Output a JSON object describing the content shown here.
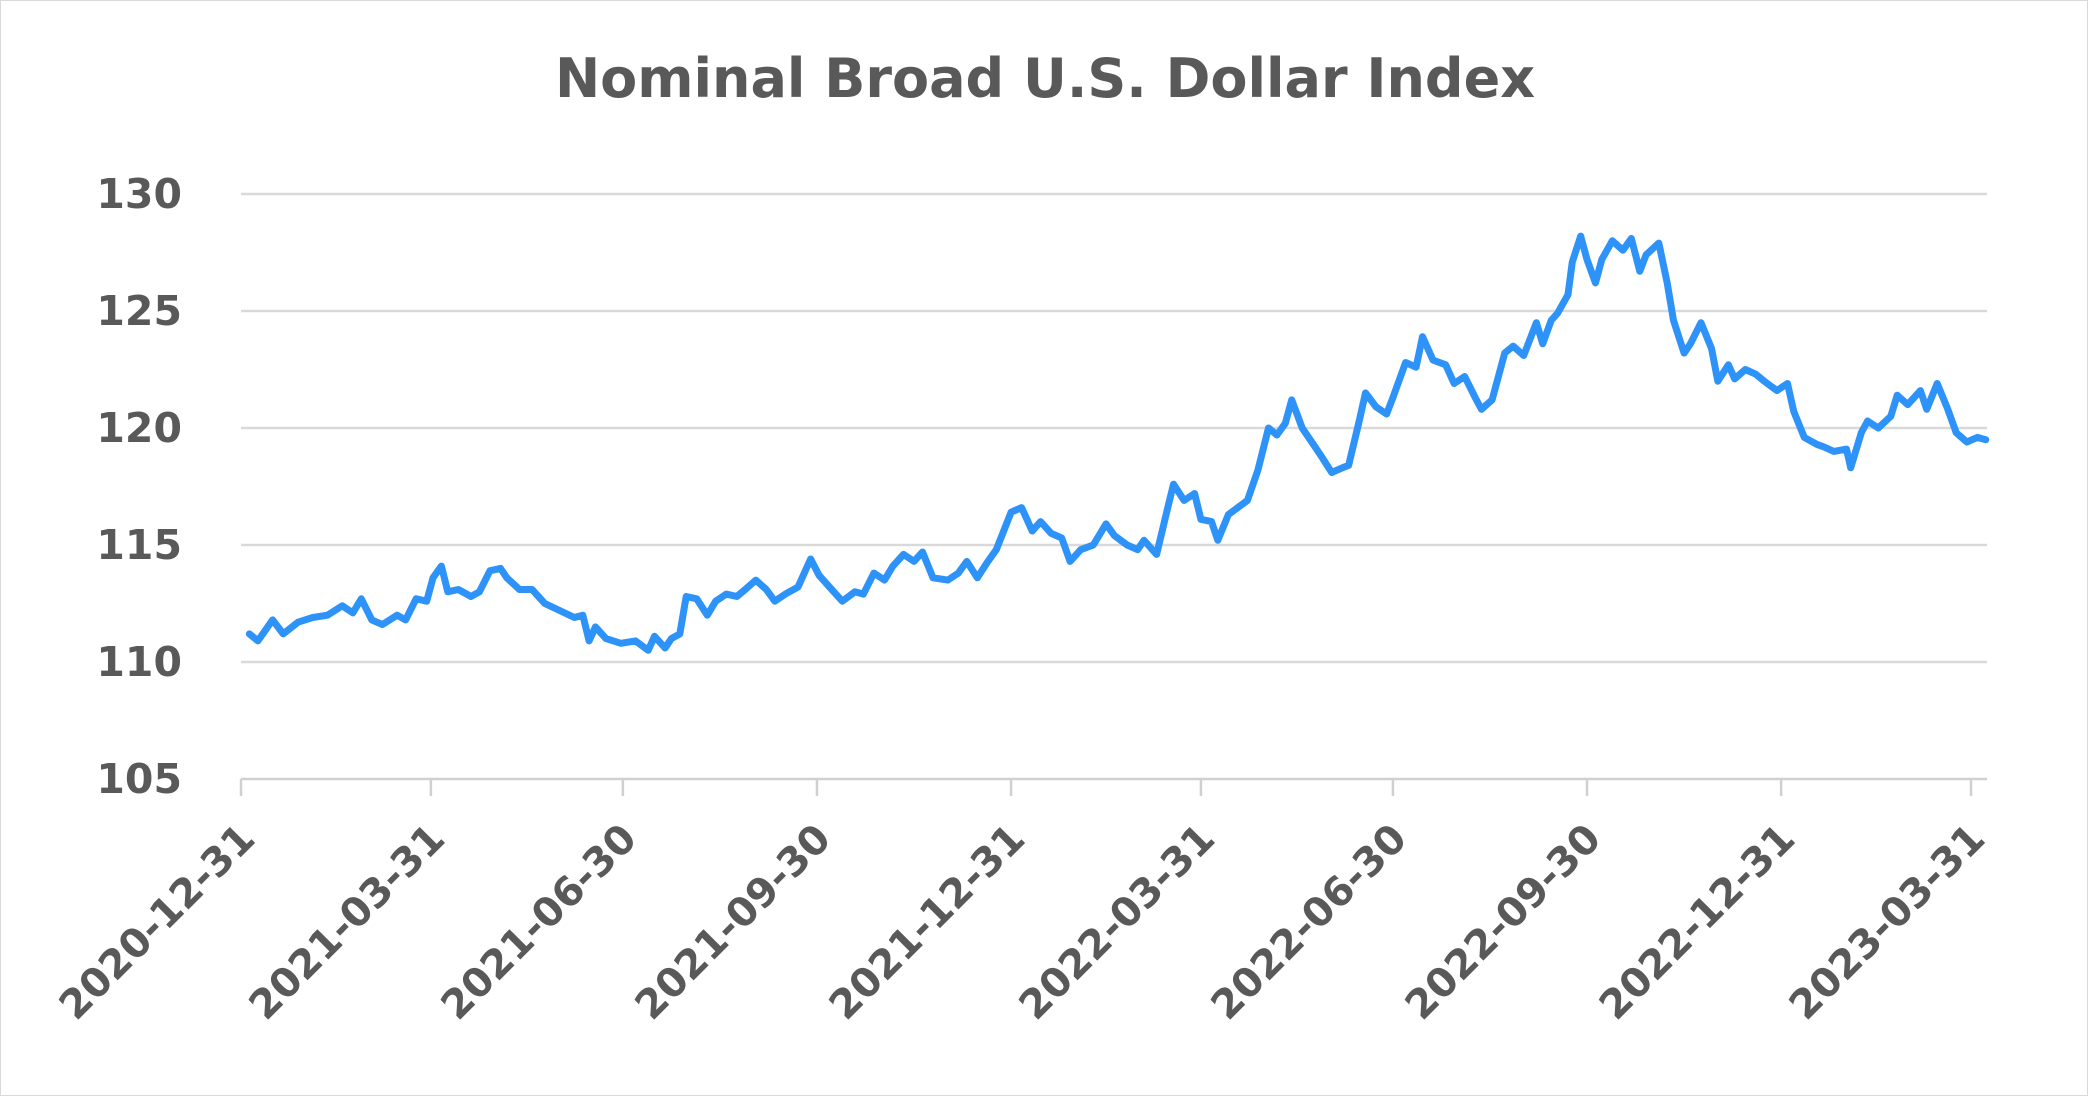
{
  "chart_data": {
    "type": "line",
    "title": "Nominal Broad U.S. Dollar Index",
    "xlabel": "",
    "ylabel": "",
    "ylim": [
      105,
      130
    ],
    "yticks": [
      105,
      110,
      115,
      120,
      125,
      130
    ],
    "xlim": [
      "2020-12-31",
      "2023-04-10"
    ],
    "xticks": [
      "2020-12-31",
      "2021-03-31",
      "2021-06-30",
      "2021-09-30",
      "2021-12-31",
      "2022-03-31",
      "2022-06-30",
      "2022-09-30",
      "2022-12-31",
      "2023-03-31"
    ],
    "grid": "horizontal",
    "legend": "none",
    "series_color": "#2e93f8",
    "series": [
      {
        "name": "Nominal Broad U.S. Dollar Index",
        "points": [
          [
            "2021-01-04",
            111.2
          ],
          [
            "2021-01-08",
            110.9
          ],
          [
            "2021-01-15",
            111.8
          ],
          [
            "2021-01-20",
            111.2
          ],
          [
            "2021-01-27",
            111.7
          ],
          [
            "2021-02-03",
            111.9
          ],
          [
            "2021-02-10",
            112.0
          ],
          [
            "2021-02-17",
            112.4
          ],
          [
            "2021-02-22",
            112.1
          ],
          [
            "2021-02-26",
            112.7
          ],
          [
            "2021-03-03",
            111.8
          ],
          [
            "2021-03-08",
            111.6
          ],
          [
            "2021-03-15",
            112.0
          ],
          [
            "2021-03-19",
            111.8
          ],
          [
            "2021-03-24",
            112.7
          ],
          [
            "2021-03-29",
            112.6
          ],
          [
            "2021-04-01",
            113.6
          ],
          [
            "2021-04-05",
            114.1
          ],
          [
            "2021-04-08",
            113.0
          ],
          [
            "2021-04-13",
            113.1
          ],
          [
            "2021-04-19",
            112.8
          ],
          [
            "2021-04-23",
            113.0
          ],
          [
            "2021-04-28",
            113.9
          ],
          [
            "2021-05-03",
            114.0
          ],
          [
            "2021-05-06",
            113.6
          ],
          [
            "2021-05-12",
            113.1
          ],
          [
            "2021-05-18",
            113.1
          ],
          [
            "2021-05-24",
            112.5
          ],
          [
            "2021-05-31",
            112.2
          ],
          [
            "2021-06-07",
            111.9
          ],
          [
            "2021-06-11",
            112.0
          ],
          [
            "2021-06-14",
            110.9
          ],
          [
            "2021-06-17",
            111.5
          ],
          [
            "2021-06-22",
            111.0
          ],
          [
            "2021-06-29",
            110.8
          ],
          [
            "2021-07-06",
            110.9
          ],
          [
            "2021-07-12",
            110.5
          ],
          [
            "2021-07-15",
            111.1
          ],
          [
            "2021-07-20",
            110.6
          ],
          [
            "2021-07-23",
            111.0
          ],
          [
            "2021-07-27",
            111.2
          ],
          [
            "2021-07-30",
            112.8
          ],
          [
            "2021-08-04",
            112.7
          ],
          [
            "2021-08-09",
            112.0
          ],
          [
            "2021-08-13",
            112.6
          ],
          [
            "2021-08-18",
            112.9
          ],
          [
            "2021-08-23",
            112.8
          ],
          [
            "2021-08-27",
            113.1
          ],
          [
            "2021-09-01",
            113.5
          ],
          [
            "2021-09-06",
            113.1
          ],
          [
            "2021-09-10",
            112.6
          ],
          [
            "2021-09-15",
            112.9
          ],
          [
            "2021-09-21",
            113.2
          ],
          [
            "2021-09-27",
            114.4
          ],
          [
            "2021-10-01",
            113.7
          ],
          [
            "2021-10-06",
            113.2
          ],
          [
            "2021-10-12",
            112.6
          ],
          [
            "2021-10-18",
            113.0
          ],
          [
            "2021-10-22",
            112.9
          ],
          [
            "2021-10-27",
            113.8
          ],
          [
            "2021-11-01",
            113.5
          ],
          [
            "2021-11-05",
            114.1
          ],
          [
            "2021-11-10",
            114.6
          ],
          [
            "2021-11-15",
            114.3
          ],
          [
            "2021-11-19",
            114.7
          ],
          [
            "2021-11-24",
            113.6
          ],
          [
            "2021-12-01",
            113.5
          ],
          [
            "2021-12-06",
            113.8
          ],
          [
            "2021-12-10",
            114.3
          ],
          [
            "2021-12-15",
            113.6
          ],
          [
            "2021-12-20",
            114.3
          ],
          [
            "2021-12-24",
            114.8
          ],
          [
            "2021-12-31",
            116.4
          ],
          [
            "2022-01-05",
            116.6
          ],
          [
            "2022-01-10",
            115.6
          ],
          [
            "2022-01-14",
            116.0
          ],
          [
            "2022-01-19",
            115.5
          ],
          [
            "2022-01-24",
            115.3
          ],
          [
            "2022-01-28",
            114.3
          ],
          [
            "2022-02-02",
            114.8
          ],
          [
            "2022-02-08",
            115.0
          ],
          [
            "2022-02-14",
            115.9
          ],
          [
            "2022-02-18",
            115.4
          ],
          [
            "2022-02-24",
            115.0
          ],
          [
            "2022-03-01",
            114.8
          ],
          [
            "2022-03-04",
            115.2
          ],
          [
            "2022-03-10",
            114.6
          ],
          [
            "2022-03-15",
            116.5
          ],
          [
            "2022-03-18",
            117.6
          ],
          [
            "2022-03-23",
            116.9
          ],
          [
            "2022-03-28",
            117.2
          ],
          [
            "2022-03-31",
            116.1
          ],
          [
            "2022-04-05",
            116.0
          ],
          [
            "2022-04-08",
            115.2
          ],
          [
            "2022-04-13",
            116.3
          ],
          [
            "2022-04-19",
            116.7
          ],
          [
            "2022-04-22",
            116.9
          ],
          [
            "2022-04-27",
            118.2
          ],
          [
            "2022-05-02",
            120.0
          ],
          [
            "2022-05-06",
            119.7
          ],
          [
            "2022-05-10",
            120.2
          ],
          [
            "2022-05-13",
            121.2
          ],
          [
            "2022-05-18",
            120.0
          ],
          [
            "2022-05-24",
            119.2
          ],
          [
            "2022-05-27",
            118.8
          ],
          [
            "2022-06-01",
            118.1
          ],
          [
            "2022-06-06",
            118.3
          ],
          [
            "2022-06-09",
            118.4
          ],
          [
            "2022-06-14",
            120.3
          ],
          [
            "2022-06-17",
            121.5
          ],
          [
            "2022-06-22",
            120.9
          ],
          [
            "2022-06-27",
            120.6
          ],
          [
            "2022-06-30",
            121.3
          ],
          [
            "2022-07-06",
            122.8
          ],
          [
            "2022-07-11",
            122.6
          ],
          [
            "2022-07-14",
            123.9
          ],
          [
            "2022-07-19",
            122.9
          ],
          [
            "2022-07-25",
            122.7
          ],
          [
            "2022-07-29",
            121.9
          ],
          [
            "2022-08-03",
            122.2
          ],
          [
            "2022-08-08",
            121.3
          ],
          [
            "2022-08-11",
            120.8
          ],
          [
            "2022-08-16",
            121.2
          ],
          [
            "2022-08-22",
            123.2
          ],
          [
            "2022-08-26",
            123.5
          ],
          [
            "2022-08-31",
            123.1
          ],
          [
            "2022-09-06",
            124.5
          ],
          [
            "2022-09-09",
            123.6
          ],
          [
            "2022-09-13",
            124.6
          ],
          [
            "2022-09-16",
            124.9
          ],
          [
            "2022-09-21",
            125.7
          ],
          [
            "2022-09-23",
            127.1
          ],
          [
            "2022-09-27",
            128.2
          ],
          [
            "2022-09-30",
            127.2
          ],
          [
            "2022-10-04",
            126.2
          ],
          [
            "2022-10-07",
            127.2
          ],
          [
            "2022-10-12",
            128.0
          ],
          [
            "2022-10-17",
            127.6
          ],
          [
            "2022-10-21",
            128.1
          ],
          [
            "2022-10-25",
            126.7
          ],
          [
            "2022-10-28",
            127.4
          ],
          [
            "2022-11-03",
            127.9
          ],
          [
            "2022-11-07",
            126.2
          ],
          [
            "2022-11-10",
            124.6
          ],
          [
            "2022-11-15",
            123.2
          ],
          [
            "2022-11-18",
            123.6
          ],
          [
            "2022-11-23",
            124.5
          ],
          [
            "2022-11-28",
            123.4
          ],
          [
            "2022-12-01",
            122.0
          ],
          [
            "2022-12-06",
            122.7
          ],
          [
            "2022-12-09",
            122.1
          ],
          [
            "2022-12-14",
            122.5
          ],
          [
            "2022-12-19",
            122.3
          ],
          [
            "2022-12-23",
            122.0
          ],
          [
            "2022-12-29",
            121.6
          ],
          [
            "2023-01-03",
            121.9
          ],
          [
            "2023-01-06",
            120.7
          ],
          [
            "2023-01-11",
            119.6
          ],
          [
            "2023-01-17",
            119.3
          ],
          [
            "2023-01-20",
            119.2
          ],
          [
            "2023-01-25",
            119.0
          ],
          [
            "2023-01-31",
            119.1
          ],
          [
            "2023-02-02",
            118.3
          ],
          [
            "2023-02-07",
            119.8
          ],
          [
            "2023-02-10",
            120.3
          ],
          [
            "2023-02-15",
            120.0
          ],
          [
            "2023-02-21",
            120.5
          ],
          [
            "2023-02-24",
            121.4
          ],
          [
            "2023-03-01",
            121.0
          ],
          [
            "2023-03-07",
            121.6
          ],
          [
            "2023-03-10",
            120.8
          ],
          [
            "2023-03-15",
            121.9
          ],
          [
            "2023-03-20",
            120.8
          ],
          [
            "2023-03-24",
            119.8
          ],
          [
            "2023-03-29",
            119.4
          ],
          [
            "2023-04-03",
            119.6
          ],
          [
            "2023-04-07",
            119.5
          ]
        ]
      }
    ]
  }
}
